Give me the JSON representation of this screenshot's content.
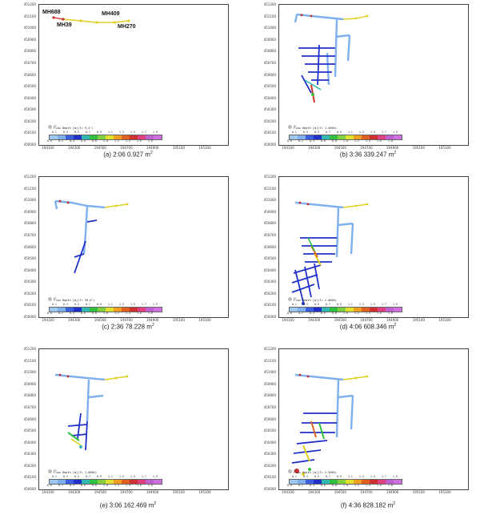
{
  "axes": {
    "yticks": [
      "451200",
      "451100",
      "451000",
      "450900",
      "450800",
      "450700",
      "450600",
      "450500",
      "450400",
      "450300",
      "450200",
      "450100",
      "450000"
    ],
    "xticks": [
      "194100",
      "194300",
      "194500",
      "194700",
      "194900",
      "195100",
      "195300"
    ]
  },
  "legend": {
    "series_label": "pc",
    "colors": [
      "#9ec8f0",
      "#7fb0ee",
      "#3a60e0",
      "#2030c8",
      "#30b8b0",
      "#30c040",
      "#80d040",
      "#e0e030",
      "#f0a020",
      "#e06020",
      "#d03030",
      "#e04080",
      "#c060d0",
      "#d070e0"
    ],
    "top_labels": [
      "0.1",
      "0.3",
      "0.5",
      "0.7",
      "0.9",
      "1.1",
      "1.3",
      "1.5",
      "1.7",
      "1.9"
    ],
    "bottom_labels": [
      "0.0",
      "0.2",
      "0.4",
      "0.6",
      "0.8",
      "1.0",
      "1.2",
      "1.4",
      "1.6",
      "1.8"
    ]
  },
  "manholes": [
    "MH688",
    "MH409",
    "MH39",
    "MH270"
  ],
  "panels": [
    {
      "caption": "(a) 2:06 0.927 m",
      "sup": "2",
      "legend_title": "Flow Depth [m](T= 9,4')"
    },
    {
      "caption": "(b) 3:36 339.247 m",
      "sup": "2",
      "legend_title": "Flow Depth [m](T= 1.506h)"
    },
    {
      "caption": "(c) 2:36 78.228 m",
      "sup": "2",
      "legend_title": "Flow Depth [m](T= 39,0')"
    },
    {
      "caption": "(d) 4:06 608.346 m",
      "sup": "2",
      "legend_title": "Flow Depth [m](T= 2.006h)"
    },
    {
      "caption": "(e) 3:06 162.469 m",
      "sup": "2",
      "legend_title": "Flow Depth [m](T= 1.006h)"
    },
    {
      "caption": "(f) 4:36 828.182 m",
      "sup": "2",
      "legend_title": "Flow Depth [m](T= 2.506h)"
    }
  ]
}
